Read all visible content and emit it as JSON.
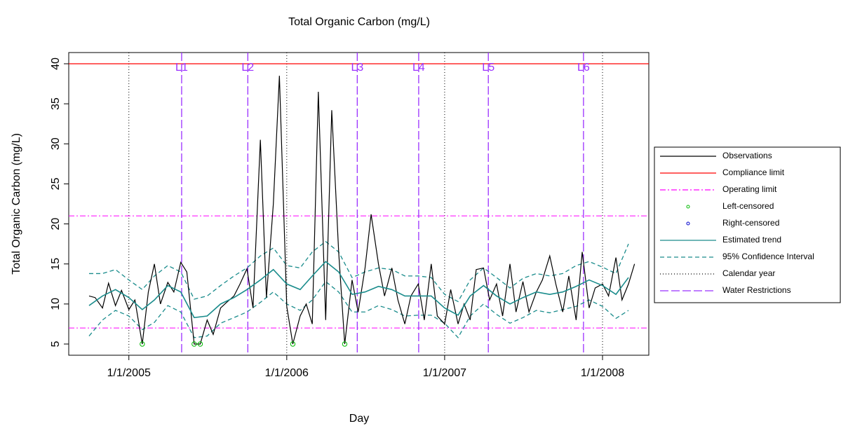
{
  "chart_data": {
    "type": "line",
    "title": "Total Organic Carbon (mg/L)",
    "x_label": "Day",
    "y_label": "Total Organic Carbon (mg/L)",
    "xlim": [
      "2004-08-15",
      "2008-04-17"
    ],
    "xticks": [
      {
        "value": "2005-01-01",
        "label": "1/1/2005"
      },
      {
        "value": "2006-01-01",
        "label": "1/1/2006"
      },
      {
        "value": "2007-01-01",
        "label": "1/1/2007"
      },
      {
        "value": "2008-01-01",
        "label": "1/1/2008"
      }
    ],
    "ylim": [
      3.6,
      41.4
    ],
    "yticks": [
      5,
      10,
      15,
      20,
      25,
      30,
      35,
      40
    ],
    "legend_position": "right",
    "series": [
      {
        "name": "Observations",
        "color": "#000000",
        "x": [
          "2004-10-01",
          "2004-10-15",
          "2004-11-01",
          "2004-11-15",
          "2004-12-01",
          "2004-12-15",
          "2005-01-01",
          "2005-01-15",
          "2005-02-01",
          "2005-02-15",
          "2005-03-01",
          "2005-03-15",
          "2005-04-01",
          "2005-04-15",
          "2005-05-01",
          "2005-05-15",
          "2005-06-01",
          "2005-06-15",
          "2005-07-01",
          "2005-07-15",
          "2005-08-01",
          "2005-08-15",
          "2005-09-01",
          "2005-09-15",
          "2005-10-01",
          "2005-10-15",
          "2005-11-01",
          "2005-11-15",
          "2005-12-01",
          "2005-12-15",
          "2006-01-01",
          "2006-01-15",
          "2006-02-01",
          "2006-02-15",
          "2006-03-01",
          "2006-03-15",
          "2006-04-01",
          "2006-04-15",
          "2006-05-01",
          "2006-05-15",
          "2006-06-01",
          "2006-06-15",
          "2006-07-01",
          "2006-07-15",
          "2006-08-01",
          "2006-08-15",
          "2006-09-01",
          "2006-09-15",
          "2006-10-01",
          "2006-10-15",
          "2006-11-01",
          "2006-11-15",
          "2006-12-01",
          "2006-12-15",
          "2007-01-01",
          "2007-01-15",
          "2007-02-01",
          "2007-02-15",
          "2007-03-01",
          "2007-03-15",
          "2007-04-01",
          "2007-04-15",
          "2007-05-01",
          "2007-05-15",
          "2007-06-01",
          "2007-06-15",
          "2007-07-01",
          "2007-07-15",
          "2007-08-01",
          "2007-08-15",
          "2007-09-01",
          "2007-09-15",
          "2007-10-01",
          "2007-10-15",
          "2007-11-01",
          "2007-11-15",
          "2007-12-01",
          "2007-12-15",
          "2008-01-01",
          "2008-01-15",
          "2008-02-01",
          "2008-02-15",
          "2008-03-01",
          "2008-03-15"
        ],
        "values": [
          11,
          10.8,
          9.5,
          12.6,
          9.8,
          11.7,
          9.3,
          10.5,
          5,
          11.5,
          15,
          10,
          12.7,
          11.5,
          15.2,
          14,
          5,
          5,
          8,
          6.2,
          9.5,
          10.2,
          11,
          12.5,
          14.4,
          9.5,
          30.5,
          10.8,
          22.5,
          38.5,
          9.7,
          5,
          8.5,
          10,
          7.5,
          36.5,
          8,
          34.2,
          16.5,
          5,
          13,
          9,
          14.5,
          21.2,
          15,
          11,
          14.5,
          10.5,
          7.5,
          11,
          12.5,
          8,
          15,
          8.5,
          7.5,
          11.8,
          7.5,
          10,
          8,
          14.3,
          14.5,
          10.5,
          12.5,
          8.5,
          15,
          9,
          12.8,
          9,
          11.5,
          13,
          16,
          12.5,
          9,
          13.5,
          8,
          16.5,
          9.5,
          12,
          12.5,
          11,
          15.8,
          10.5,
          12.5,
          15
        ]
      },
      {
        "name": "Estimated trend",
        "color": "#1a8c8c",
        "x": [
          "2004-10-01",
          "2004-11-01",
          "2004-12-01",
          "2005-01-01",
          "2005-02-01",
          "2005-03-01",
          "2005-04-01",
          "2005-05-01",
          "2005-06-01",
          "2005-07-01",
          "2005-08-01",
          "2005-09-01",
          "2005-10-01",
          "2005-11-01",
          "2005-12-01",
          "2006-01-01",
          "2006-02-01",
          "2006-03-01",
          "2006-04-01",
          "2006-05-01",
          "2006-06-01",
          "2006-07-01",
          "2006-08-01",
          "2006-09-01",
          "2006-10-01",
          "2006-11-01",
          "2006-12-01",
          "2007-01-01",
          "2007-02-01",
          "2007-03-01",
          "2007-04-01",
          "2007-05-01",
          "2007-06-01",
          "2007-07-01",
          "2007-08-01",
          "2007-09-01",
          "2007-10-01",
          "2007-11-01",
          "2007-12-01",
          "2008-01-01",
          "2008-02-01",
          "2008-03-01"
        ],
        "values": [
          9.8,
          11,
          11.8,
          10.8,
          9.3,
          10.5,
          12.3,
          11.5,
          8.3,
          8.5,
          10,
          10.8,
          11.8,
          13,
          14.3,
          12.5,
          11.8,
          13.5,
          15.3,
          14,
          11.2,
          11.5,
          12.2,
          11.8,
          11,
          11,
          11,
          9.5,
          8.6,
          11,
          12.3,
          11,
          10,
          10.8,
          11.5,
          11.2,
          11.5,
          12.2,
          13,
          12.3,
          11.2,
          13.3
        ]
      }
    ],
    "confidence_interval": {
      "name": "95% Confidence Interval",
      "color": "#1a8c8c",
      "x": [
        "2004-10-01",
        "2004-11-01",
        "2004-12-01",
        "2005-01-01",
        "2005-02-01",
        "2005-03-01",
        "2005-04-01",
        "2005-05-01",
        "2005-06-01",
        "2005-07-01",
        "2005-08-01",
        "2005-09-01",
        "2005-10-01",
        "2005-11-01",
        "2005-12-01",
        "2006-01-01",
        "2006-02-01",
        "2006-03-01",
        "2006-04-01",
        "2006-05-01",
        "2006-06-01",
        "2006-07-01",
        "2006-08-01",
        "2006-09-01",
        "2006-10-01",
        "2006-11-01",
        "2006-12-01",
        "2007-01-01",
        "2007-02-01",
        "2007-03-01",
        "2007-04-01",
        "2007-05-01",
        "2007-06-01",
        "2007-07-01",
        "2007-08-01",
        "2007-09-01",
        "2007-10-01",
        "2007-11-01",
        "2007-12-01",
        "2008-01-01",
        "2008-02-01",
        "2008-03-01"
      ],
      "upper": [
        13.8,
        13.8,
        14.3,
        13,
        11.8,
        13.5,
        14.8,
        14,
        10.6,
        11,
        12.3,
        13.5,
        14.5,
        16,
        17,
        14.8,
        14.5,
        16.5,
        17.8,
        16.5,
        13.3,
        14,
        14.5,
        14.3,
        13.5,
        13.5,
        13.3,
        11.2,
        10.3,
        13,
        14.5,
        13.3,
        12,
        13.2,
        13.8,
        13.5,
        13.8,
        14.8,
        15.3,
        14.6,
        13.8,
        17.5
      ],
      "lower": [
        6,
        8,
        9.2,
        8.5,
        6.8,
        7.7,
        9.8,
        9,
        5.8,
        6,
        7.6,
        8.3,
        9,
        10.2,
        11.5,
        10,
        9.2,
        10.5,
        12.8,
        11.5,
        9,
        9,
        9.8,
        9.3,
        8.5,
        8.6,
        8.6,
        7.6,
        5.8,
        8.5,
        10,
        8.7,
        7.6,
        8.3,
        9.2,
        8.9,
        9.3,
        9.7,
        10.5,
        9.7,
        8.2,
        9.2
      ]
    },
    "compliance_limit": {
      "name": "Compliance limit",
      "color": "#ff0000",
      "value": 40
    },
    "operating_limit": {
      "name": "Operating limit",
      "color": "#ff00ff",
      "values": [
        21,
        7
      ]
    },
    "left_censored": {
      "name": "Left-censored",
      "color": "#00bb00",
      "x": [
        "2005-02-01",
        "2005-06-01",
        "2005-06-15",
        "2006-01-15",
        "2006-05-15"
      ],
      "values": [
        5,
        5,
        5,
        5,
        5
      ]
    },
    "right_censored": {
      "name": "Right-censored",
      "color": "#0000cc",
      "x": [],
      "values": []
    },
    "calendar_year": {
      "name": "Calendar year",
      "color": "#000000"
    },
    "water_restrictions": {
      "name": "Water Restrictions",
      "color": "#9b30ff",
      "x": [
        "2005-05-03",
        "2005-10-03",
        "2006-06-13",
        "2006-11-02",
        "2007-04-12",
        "2007-11-18"
      ],
      "labels": [
        "L1",
        "L2",
        "L3",
        "L4",
        "L5",
        "L6"
      ]
    }
  }
}
